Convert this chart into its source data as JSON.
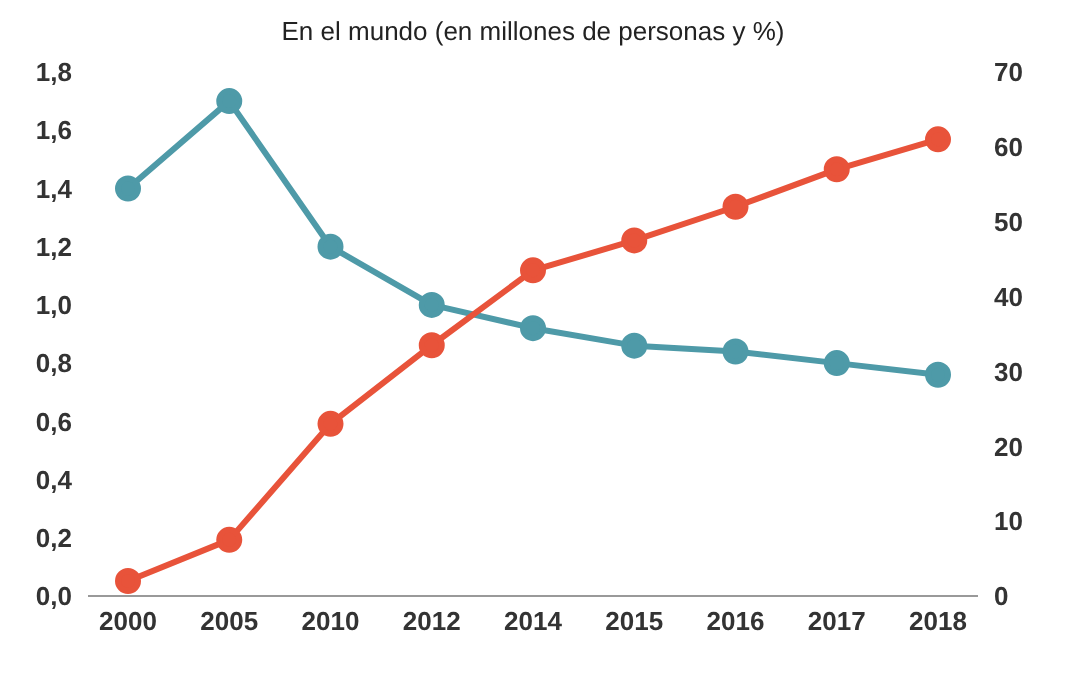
{
  "chart_data": {
    "type": "line",
    "title": "En el mundo (en millones de personas y %)",
    "categories": [
      "2000",
      "2005",
      "2010",
      "2012",
      "2014",
      "2015",
      "2016",
      "2017",
      "2018"
    ],
    "series": [
      {
        "color": "#4e9aa8",
        "values": [
          1.4,
          1.7,
          1.2,
          1.0,
          0.92,
          0.86,
          0.84,
          0.8,
          0.76
        ]
      },
      {
        "color": "#e8533a",
        "axis": "y2",
        "values": [
          2,
          7.5,
          23,
          33.5,
          43.5,
          47.5,
          52,
          57,
          61
        ]
      }
    ],
    "ylim": [
      0,
      1.8
    ],
    "yticks": [
      {
        "value": 0,
        "label": "0,0"
      },
      {
        "value": 0.2,
        "label": "0,2"
      },
      {
        "value": 0.4,
        "label": "0,4"
      },
      {
        "value": 0.6,
        "label": "0,6"
      },
      {
        "value": 0.8,
        "label": "0,8"
      },
      {
        "value": 1,
        "label": "1,0"
      },
      {
        "value": 1.2,
        "label": "1,2"
      },
      {
        "value": 1.4,
        "label": "1,4"
      },
      {
        "value": 1.6,
        "label": "1,6"
      },
      {
        "value": 1.8,
        "label": "1,8"
      }
    ],
    "y2lim": [
      0,
      70
    ],
    "y2ticks": [
      0,
      10,
      20,
      30,
      40,
      50,
      60,
      70
    ],
    "grid": false,
    "legend": false,
    "marker": "circle",
    "line_style": "solid"
  }
}
